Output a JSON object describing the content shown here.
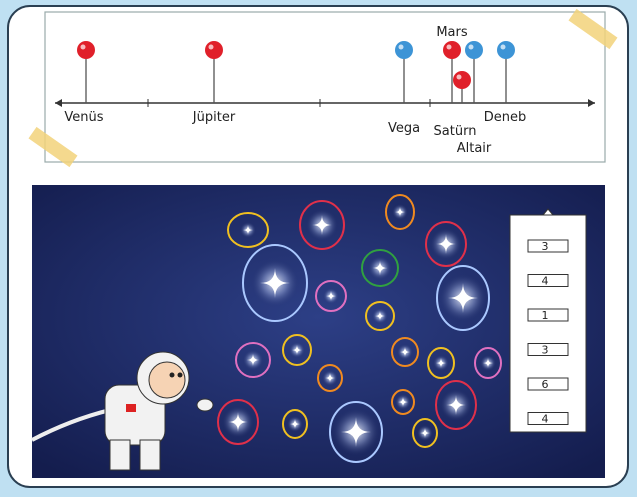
{
  "timeline": {
    "pins": [
      {
        "label": "Venüs"
      },
      {
        "label": "Jüpiter"
      },
      {
        "label": "Vega"
      },
      {
        "label": "Mars"
      },
      {
        "label": "Satürn"
      },
      {
        "label": "Altair"
      },
      {
        "label": "Deneb"
      }
    ]
  },
  "answer_box": {
    "items": [
      "3",
      "4",
      "1",
      "3",
      "6",
      "4"
    ]
  }
}
